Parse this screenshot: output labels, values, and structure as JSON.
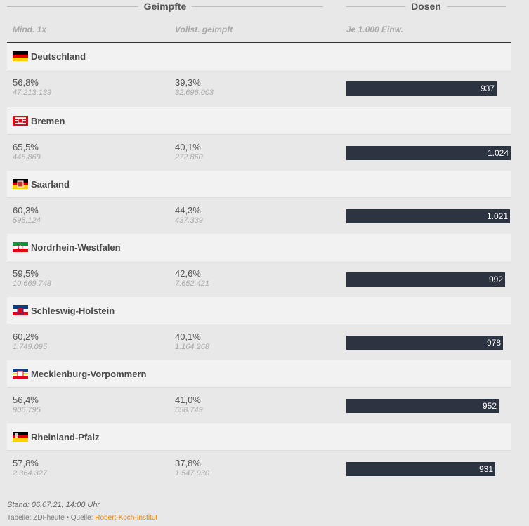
{
  "header": {
    "group_vaccinated": "Geimpfte",
    "group_doses": "Dosen",
    "col_min1": "Mind. 1x",
    "col_full": "Vollst. geimpft",
    "col_per1000": "Je 1.000 Einw."
  },
  "chart_data": {
    "type": "table",
    "bar_axis_max": 1030,
    "rows": [
      {
        "name": "Deutschland",
        "flag": "flag-germany",
        "min1_pct": "56,8%",
        "min1_abs": "47.213.139",
        "full_pct": "39,3%",
        "full_abs": "32.696.003",
        "doses_per_1000": 937,
        "doses_label": "937"
      },
      {
        "name": "Bremen",
        "flag": "flag-bremen",
        "min1_pct": "65,5%",
        "min1_abs": "445.869",
        "full_pct": "40,1%",
        "full_abs": "272.860",
        "doses_per_1000": 1024,
        "doses_label": "1.024"
      },
      {
        "name": "Saarland",
        "flag": "flag-saarland",
        "min1_pct": "60,3%",
        "min1_abs": "595.124",
        "full_pct": "44,3%",
        "full_abs": "437.339",
        "doses_per_1000": 1021,
        "doses_label": "1.021"
      },
      {
        "name": "Nordrhein-Westfalen",
        "flag": "flag-nrw",
        "min1_pct": "59,5%",
        "min1_abs": "10.669.748",
        "full_pct": "42,6%",
        "full_abs": "7.652.421",
        "doses_per_1000": 992,
        "doses_label": "992"
      },
      {
        "name": "Schleswig-Holstein",
        "flag": "flag-schleswig-holstein",
        "min1_pct": "60,2%",
        "min1_abs": "1.749.095",
        "full_pct": "40,1%",
        "full_abs": "1.164.268",
        "doses_per_1000": 978,
        "doses_label": "978"
      },
      {
        "name": "Mecklenburg-Vorpommern",
        "flag": "flag-mecklenburg-vorpommern",
        "min1_pct": "56,4%",
        "min1_abs": "906.795",
        "full_pct": "41,0%",
        "full_abs": "658.749",
        "doses_per_1000": 952,
        "doses_label": "952"
      },
      {
        "name": "Rheinland-Pfalz",
        "flag": "flag-rheinland-pfalz",
        "min1_pct": "57,8%",
        "min1_abs": "2.364.327",
        "full_pct": "37,8%",
        "full_abs": "1.547.930",
        "doses_per_1000": 931,
        "doses_label": "931"
      }
    ]
  },
  "footer": {
    "stand": "Stand: 06.07.21, 14:00 Uhr",
    "credit_prefix": "Tabelle: ZDFheute • Quelle: ",
    "source_link": "Robert-Koch-Institut"
  },
  "colors": {
    "bar": "#2d3441",
    "source_link": "#e8820c"
  }
}
